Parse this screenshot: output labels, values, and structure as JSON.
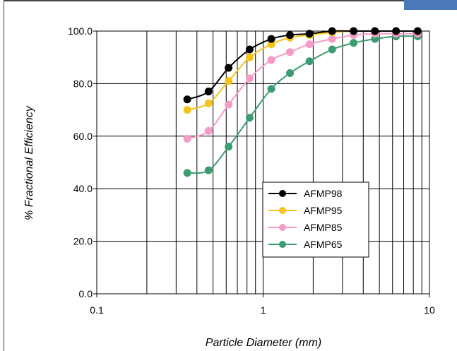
{
  "colors": {
    "background": "#ffffff",
    "grid": "#000000",
    "frame": "#444444",
    "corner_tab": "#4a78b8"
  },
  "chart_data": {
    "type": "line",
    "title": "",
    "xlabel": "Particle Diameter (mm)",
    "ylabel": "% Fractional Efficiency",
    "xscale": "log",
    "xlim": [
      0.1,
      10
    ],
    "ylim": [
      0,
      100
    ],
    "xticks": [
      0.1,
      1,
      10
    ],
    "xtick_labels": [
      "0.1",
      "1",
      "10"
    ],
    "yticks": [
      0,
      20,
      40,
      60,
      80,
      100
    ],
    "ytick_labels": [
      "0.0",
      "20.0",
      "40.0",
      "60.0",
      "80.0",
      "100.0"
    ],
    "grid": true,
    "legend_position": "lower-right",
    "x": [
      0.35,
      0.47,
      0.62,
      0.83,
      1.12,
      1.45,
      1.9,
      2.6,
      3.5,
      4.7,
      6.3,
      8.5
    ],
    "series": [
      {
        "name": "AFMP98",
        "color": "#000000",
        "values": [
          74,
          77,
          86,
          93,
          97,
          98.5,
          99,
          100,
          100,
          100,
          100,
          100
        ]
      },
      {
        "name": "AFMP95",
        "color": "#f7c31a",
        "values": [
          70,
          72.5,
          81,
          90,
          95,
          97.5,
          98.5,
          99.5,
          100,
          100,
          100,
          100
        ]
      },
      {
        "name": "AFMP85",
        "color": "#f59bc8",
        "values": [
          59,
          62,
          72,
          82,
          89,
          92,
          95,
          97,
          98.5,
          99,
          99,
          99
        ]
      },
      {
        "name": "AFMP65",
        "color": "#3a9c70",
        "values": [
          46,
          47,
          56,
          67,
          78,
          84,
          88.5,
          93,
          95.5,
          97,
          98,
          98
        ]
      }
    ]
  }
}
